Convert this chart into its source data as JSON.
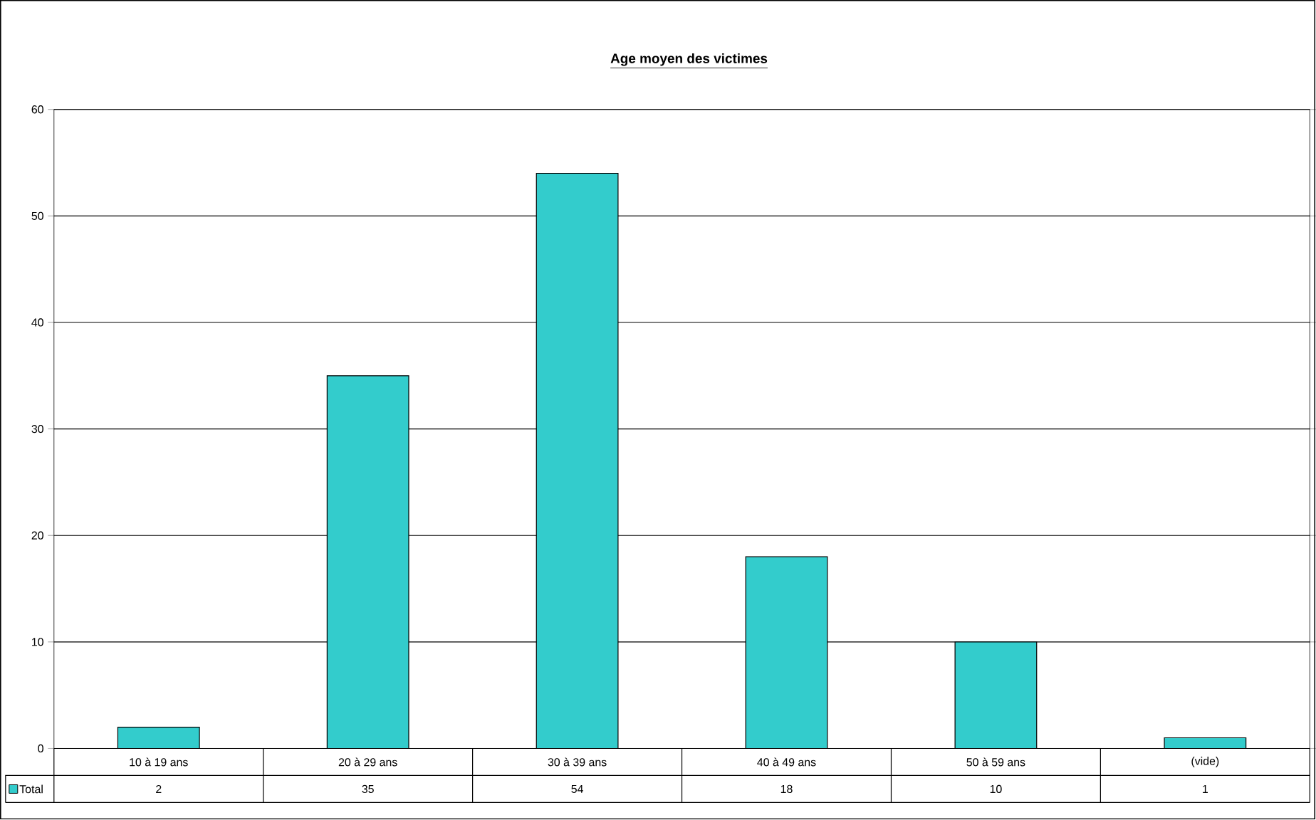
{
  "chart_data": {
    "type": "bar",
    "title": "**Age moyen des victimes**",
    "categories": [
      "10 à 19 ans",
      "20 à 29 ans",
      "30 à 39 ans",
      "40 à 49 ans",
      "50 à 59 ans",
      "(vide)"
    ],
    "series": [
      {
        "name": "Total",
        "color": "#33cccc",
        "values": [
          2,
          35,
          54,
          18,
          10,
          1
        ]
      }
    ],
    "ylim": [
      0,
      60
    ],
    "yticks": [
      0,
      10,
      20,
      30,
      40,
      50,
      60
    ],
    "grid": "y",
    "legend": "bottom left",
    "data_labels": true
  }
}
